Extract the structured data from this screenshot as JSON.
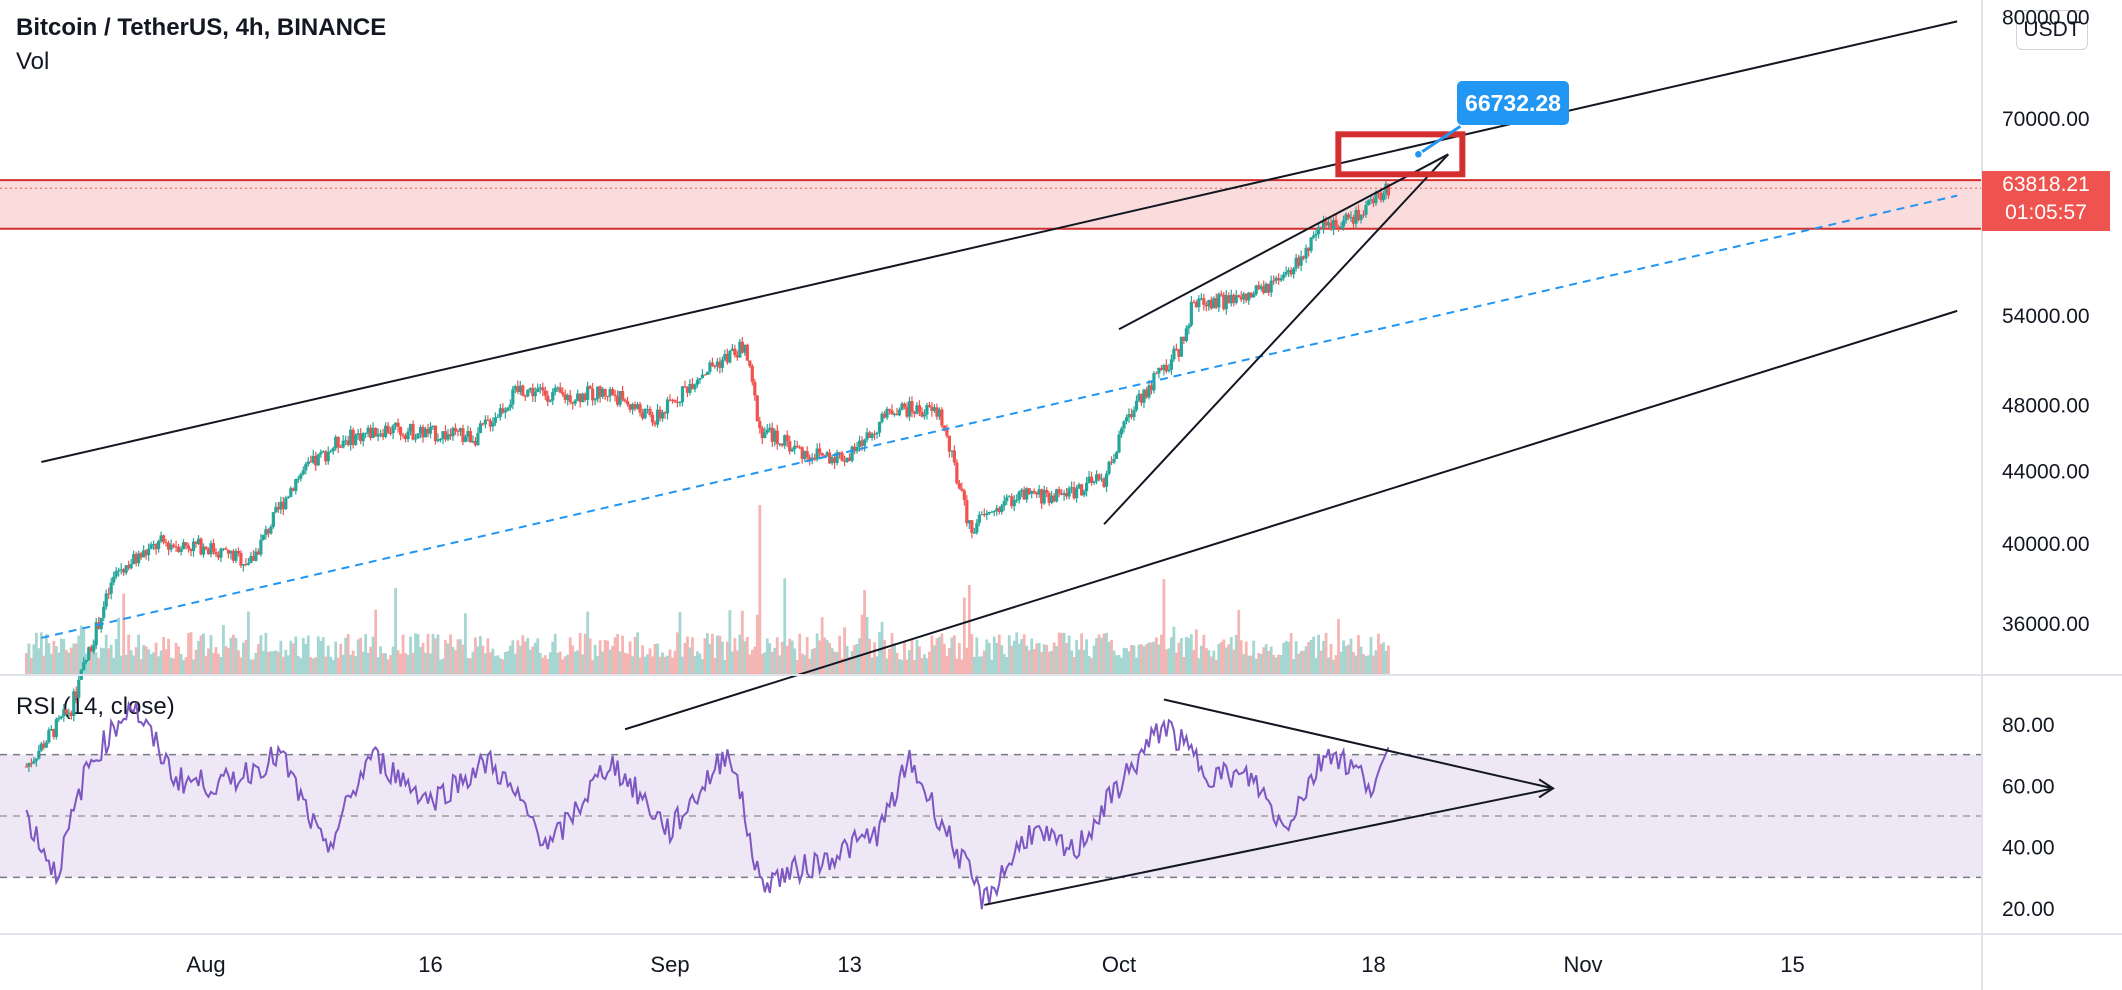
{
  "header": {
    "title": "Bitcoin / TetherUS, 4h, BINANCE",
    "volume_label": "Vol",
    "currency_button": "USDT"
  },
  "price_tag": {
    "price": "63818.21",
    "countdown": "01:05:57",
    "color": "#ef5350"
  },
  "callout": {
    "text": "66732.28",
    "color": "#2196f3"
  },
  "rsi_label": "RSI (14, close)",
  "colors": {
    "up": "#26a69a",
    "down": "#ef5350",
    "rsi_line": "#7e57c2",
    "rsi_band": "#ede7f6",
    "resistance_zone": "#fbdcdc",
    "midline": "#2196f3"
  },
  "chart_data": {
    "type": "candlestick",
    "x_tick_labels": [
      "Aug",
      "16",
      "Sep",
      "13",
      "Oct",
      "18",
      "Nov",
      "15"
    ],
    "x_tick_dates": [
      "2021-08-01",
      "2021-08-16",
      "2021-09-01",
      "2021-09-13",
      "2021-10-01",
      "2021-10-18",
      "2021-11-01",
      "2021-11-15"
    ],
    "y_tick_labels": [
      "36000.00",
      "40000.00",
      "44000.00",
      "48000.00",
      "54000.00",
      "70000.00",
      "80000.00"
    ],
    "y_log_scale": true,
    "price_path": [
      {
        "date": "2021-07-20",
        "close": 29800
      },
      {
        "date": "2021-07-23",
        "close": 32200
      },
      {
        "date": "2021-07-26",
        "close": 38500
      },
      {
        "date": "2021-07-29",
        "close": 40000
      },
      {
        "date": "2021-08-01",
        "close": 39800
      },
      {
        "date": "2021-08-04",
        "close": 39000
      },
      {
        "date": "2021-08-07",
        "close": 43500
      },
      {
        "date": "2021-08-10",
        "close": 45800
      },
      {
        "date": "2021-08-13",
        "close": 46500
      },
      {
        "date": "2021-08-16",
        "close": 46200
      },
      {
        "date": "2021-08-19",
        "close": 46000
      },
      {
        "date": "2021-08-22",
        "close": 49000
      },
      {
        "date": "2021-08-25",
        "close": 48500
      },
      {
        "date": "2021-08-28",
        "close": 48800
      },
      {
        "date": "2021-08-31",
        "close": 47000
      },
      {
        "date": "2021-09-03",
        "close": 50000
      },
      {
        "date": "2021-09-06",
        "close": 51800
      },
      {
        "date": "2021-09-07",
        "close": 46500
      },
      {
        "date": "2021-09-10",
        "close": 45000
      },
      {
        "date": "2021-09-13",
        "close": 44800
      },
      {
        "date": "2021-09-16",
        "close": 47800
      },
      {
        "date": "2021-09-19",
        "close": 47500
      },
      {
        "date": "2021-09-21",
        "close": 40800
      },
      {
        "date": "2021-09-24",
        "close": 42500
      },
      {
        "date": "2021-09-27",
        "close": 42600
      },
      {
        "date": "2021-09-30",
        "close": 43500
      },
      {
        "date": "2021-10-02",
        "close": 48000
      },
      {
        "date": "2021-10-05",
        "close": 51500
      },
      {
        "date": "2021-10-06",
        "close": 55000
      },
      {
        "date": "2021-10-09",
        "close": 55000
      },
      {
        "date": "2021-10-12",
        "close": 56500
      },
      {
        "date": "2021-10-15",
        "close": 61000
      },
      {
        "date": "2021-10-17",
        "close": 61500
      },
      {
        "date": "2021-10-19",
        "close": 63818
      }
    ],
    "last_price": 63818.21,
    "predicted_target": 66732.28,
    "resistance_zone": [
      60500,
      64500
    ],
    "rsi": {
      "name": "RSI (14, close)",
      "upper_band": 70,
      "lower_band": 30,
      "middle_line": 50,
      "y_tick_labels": [
        "20.00",
        "40.00",
        "60.00",
        "80.00"
      ],
      "path": [
        {
          "date": "2021-07-20",
          "value": 50
        },
        {
          "date": "2021-07-22",
          "value": 31
        },
        {
          "date": "2021-07-24",
          "value": 65
        },
        {
          "date": "2021-07-27",
          "value": 87
        },
        {
          "date": "2021-07-30",
          "value": 62
        },
        {
          "date": "2021-08-02",
          "value": 60
        },
        {
          "date": "2021-08-06",
          "value": 70
        },
        {
          "date": "2021-08-09",
          "value": 38
        },
        {
          "date": "2021-08-12",
          "value": 70
        },
        {
          "date": "2021-08-16",
          "value": 55
        },
        {
          "date": "2021-08-20",
          "value": 68
        },
        {
          "date": "2021-08-24",
          "value": 40
        },
        {
          "date": "2021-08-28",
          "value": 68
        },
        {
          "date": "2021-09-01",
          "value": 45
        },
        {
          "date": "2021-09-05",
          "value": 72
        },
        {
          "date": "2021-09-07",
          "value": 28
        },
        {
          "date": "2021-09-11",
          "value": 35
        },
        {
          "date": "2021-09-15",
          "value": 45
        },
        {
          "date": "2021-09-17",
          "value": 68
        },
        {
          "date": "2021-09-20",
          "value": 40
        },
        {
          "date": "2021-09-22",
          "value": 22
        },
        {
          "date": "2021-09-25",
          "value": 45
        },
        {
          "date": "2021-09-28",
          "value": 38
        },
        {
          "date": "2021-10-01",
          "value": 60
        },
        {
          "date": "2021-10-04",
          "value": 80
        },
        {
          "date": "2021-10-07",
          "value": 64
        },
        {
          "date": "2021-10-10",
          "value": 62
        },
        {
          "date": "2021-10-12",
          "value": 46
        },
        {
          "date": "2021-10-15",
          "value": 72
        },
        {
          "date": "2021-10-18",
          "value": 60
        },
        {
          "date": "2021-10-19",
          "value": 68
        }
      ]
    }
  }
}
